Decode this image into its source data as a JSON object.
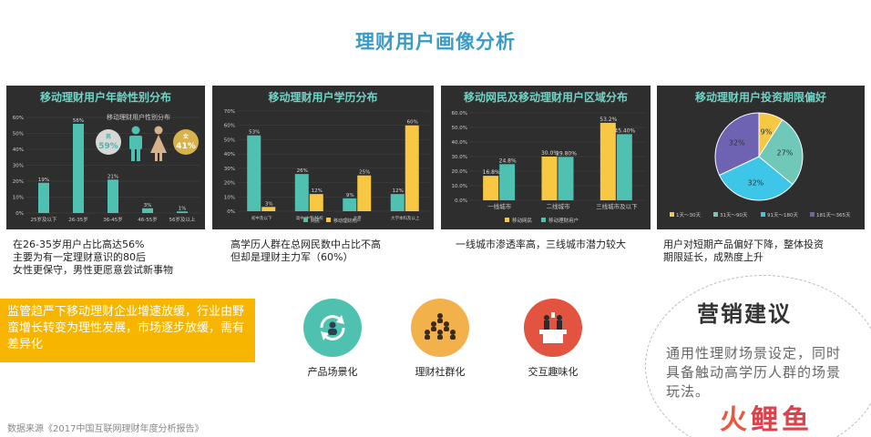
{
  "page": {
    "title": "理财用户画像分析",
    "source": "数据来源《2017中国互联网理财年度分析报告》"
  },
  "colors": {
    "teal": "#4fc1b0",
    "yellow": "#f8c842",
    "panel_bg": "#2e2e2e",
    "title_blue": "#3a9cc6"
  },
  "age_chart": {
    "title": "移动理财用户年龄性别分布",
    "legend_title": "移动理财用户性别分布",
    "male_label": "男",
    "male_value": "59%",
    "female_label": "女",
    "female_value": "41%",
    "caption": [
      "在26-35岁用户占比高达56%",
      "主要为有一定理财意识的80后",
      "女性更保守，男性更愿意尝试新事物"
    ]
  },
  "edu_chart": {
    "title": "移动理财用户学历分布",
    "caption": [
      "高学历人群在总网民数中占比不高",
      "但却是理财主力军（60%）"
    ]
  },
  "region_chart": {
    "title": "移动网民及移动理财用户区域分布",
    "caption": [
      "一线城市渗透率高，三线城市潜力较大"
    ]
  },
  "term_chart": {
    "title": "移动理财用户投资期限偏好",
    "caption": [
      "用户对短期产品偏好下降，整体投资",
      "期限延长，成熟度上升"
    ]
  },
  "chart_data": [
    {
      "type": "bar",
      "title": "移动理财用户年龄性别分布",
      "categories": [
        "25岁及以下",
        "26-35岁",
        "36-45岁",
        "46-55岁",
        "56岁及以上"
      ],
      "values": [
        19,
        56,
        21,
        3,
        1
      ],
      "value_labels": [
        "19%",
        "56%",
        "21%",
        "3%",
        "1%"
      ],
      "yticks": [
        "0%",
        "10%",
        "20%",
        "30%",
        "40%",
        "50%",
        "60%"
      ],
      "ylim": [
        0,
        60
      ]
    },
    {
      "type": "bar",
      "title": "移动理财用户学历分布",
      "categories": [
        "初中及以下",
        "高中/中专/技校",
        "大专",
        "大学本科及以上"
      ],
      "series": [
        {
          "name": "网民",
          "values": [
            53,
            26,
            9,
            12
          ],
          "labels": [
            "53%",
            "26%",
            "9%",
            "12%"
          ]
        },
        {
          "name": "移动理财用户",
          "values": [
            3,
            12,
            25,
            60
          ],
          "labels": [
            "3%",
            "12%",
            "25%",
            "60%"
          ]
        }
      ],
      "yticks": [
        "0%",
        "10%",
        "20%",
        "30%",
        "40%",
        "50%",
        "60%",
        "70%"
      ],
      "ylim": [
        0,
        70
      ]
    },
    {
      "type": "bar",
      "title": "移动网民及移动理财用户区域分布",
      "categories": [
        "一线城市",
        "二线城市",
        "三线城市及以下"
      ],
      "series": [
        {
          "name": "移动网民",
          "values": [
            16.8,
            30.0,
            53.2
          ],
          "labels": [
            "16.8%",
            "30.0%",
            "53.2%"
          ]
        },
        {
          "name": "移动理财用户",
          "values": [
            24.8,
            29.8,
            45.4
          ],
          "labels": [
            "24.8%",
            "29.80%",
            "45.40%"
          ]
        }
      ],
      "yticks": [
        "0.0%",
        "10.0%",
        "20.0%",
        "30.0%",
        "40.0%",
        "50.0%",
        "60.0%"
      ],
      "ylim": [
        0,
        60
      ]
    },
    {
      "type": "pie",
      "title": "移动理财用户投资期限偏好",
      "labels": [
        "1天～30天",
        "31天～90天",
        "91天～180天",
        "181天～365天"
      ],
      "values": [
        9,
        27,
        32,
        32
      ],
      "value_labels": [
        "9%",
        "27%",
        "32%",
        "32%"
      ],
      "colors": [
        "#f6c844",
        "#6fc8b8",
        "#3ec6e8",
        "#6e62b3"
      ]
    }
  ],
  "banner": {
    "text": "监管趋严下移动理财企业增速放缓，行业由野蛮增长转变为理性发展，市场逐步放缓，需有差异化"
  },
  "features": [
    {
      "label": "产品场景化",
      "icon": "refresh-user-icon"
    },
    {
      "label": "理财社群化",
      "icon": "community-group-icon"
    },
    {
      "label": "交互趣味化",
      "icon": "podium-interaction-icon"
    }
  ],
  "advice": {
    "title": "营销建议",
    "body": "通用性理财场景设定，同时具备触动高学历人群的场景玩法。"
  },
  "watermark": {
    "part1": "火",
    "part2": "鲤鱼"
  }
}
